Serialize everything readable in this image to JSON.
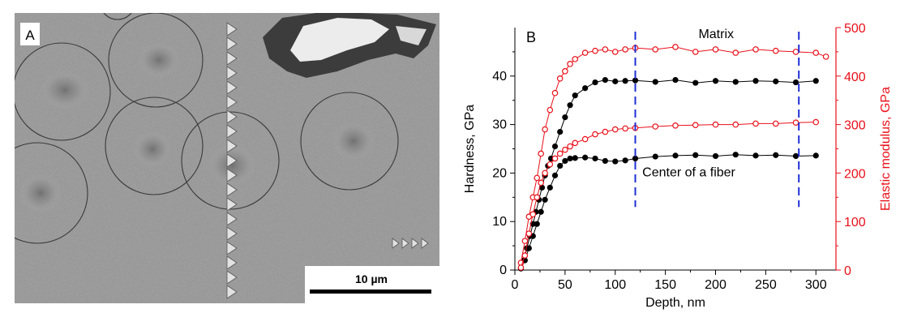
{
  "panel_a": {
    "label": "A",
    "scalebar_label": "10 µm"
  },
  "panel_b": {
    "label": "B",
    "annotations": {
      "matrix": "Matrix",
      "fiber": "Center of a fiber"
    }
  },
  "colors": {
    "hardness": "#000000",
    "modulus": "#e8101a",
    "marker_line": "#1f2fd6"
  },
  "chart_data": {
    "type": "line",
    "xlabel": "Depth, nm",
    "ylabel_left": "Hardness, GPa",
    "ylabel_right": "Elastic modulus, GPa",
    "xlim": [
      0,
      320
    ],
    "ylim_left": [
      0,
      50
    ],
    "ylim_right": [
      0,
      500
    ],
    "x_ticks": [
      0,
      50,
      100,
      150,
      200,
      250,
      300
    ],
    "y_ticks_left": [
      0,
      10,
      20,
      30,
      40
    ],
    "y_ticks_right": [
      0,
      100,
      200,
      300,
      400,
      500
    ],
    "vertical_markers": [
      120,
      283
    ],
    "series": [
      {
        "axis": "left",
        "marker": "filled",
        "x": [
          6,
          9,
          12,
          15,
          18,
          21,
          24,
          27,
          30,
          33,
          36,
          40,
          45,
          50,
          55,
          60,
          70,
          80,
          90,
          100,
          110,
          120,
          140,
          160,
          180,
          200,
          220,
          240,
          260,
          280,
          300
        ],
        "y": [
          0.5,
          2,
          4.5,
          7,
          9.5,
          12,
          14.5,
          17,
          19.5,
          21.5,
          23,
          25.5,
          28.5,
          31.5,
          34,
          36,
          37.5,
          38.7,
          39.2,
          38.9,
          39,
          39.1,
          38.8,
          39.2,
          38.6,
          39.0,
          38.8,
          39.0,
          38.9,
          38.7,
          39.0
        ]
      },
      {
        "axis": "left",
        "marker": "filled",
        "x": [
          6,
          10,
          14,
          18,
          22,
          26,
          30,
          35,
          40,
          45,
          50,
          55,
          60,
          70,
          80,
          90,
          100,
          110,
          120,
          140,
          160,
          180,
          200,
          220,
          240,
          260,
          280,
          300
        ],
        "y": [
          0.3,
          2,
          4.5,
          7,
          9.5,
          12,
          14.5,
          17,
          19.5,
          21.5,
          22.5,
          23,
          23.1,
          23.2,
          23,
          22.5,
          22.4,
          22.6,
          23,
          23.4,
          23.6,
          23.7,
          23.5,
          23.8,
          23.6,
          23.7,
          23.5,
          23.6
        ]
      },
      {
        "axis": "right",
        "marker": "open",
        "x": [
          6,
          10,
          14,
          18,
          22,
          26,
          30,
          35,
          40,
          45,
          50,
          55,
          60,
          70,
          80,
          90,
          100,
          110,
          120,
          140,
          160,
          180,
          200,
          220,
          240,
          260,
          280,
          300,
          310
        ],
        "y": [
          15,
          60,
          110,
          150,
          190,
          240,
          290,
          330,
          365,
          395,
          410,
          425,
          435,
          448,
          452,
          455,
          450,
          455,
          458,
          455,
          460,
          450,
          455,
          448,
          455,
          452,
          450,
          448,
          440
        ]
      },
      {
        "axis": "right",
        "marker": "open",
        "x": [
          6,
          10,
          14,
          18,
          22,
          26,
          30,
          35,
          40,
          45,
          50,
          55,
          60,
          70,
          80,
          90,
          100,
          110,
          120,
          140,
          160,
          180,
          200,
          220,
          240,
          260,
          280,
          300
        ],
        "y": [
          5,
          30,
          75,
          115,
          150,
          180,
          200,
          218,
          230,
          240,
          248,
          255,
          262,
          270,
          280,
          285,
          290,
          292,
          293,
          296,
          298,
          299,
          300,
          300,
          302,
          302,
          304,
          305
        ]
      }
    ]
  }
}
